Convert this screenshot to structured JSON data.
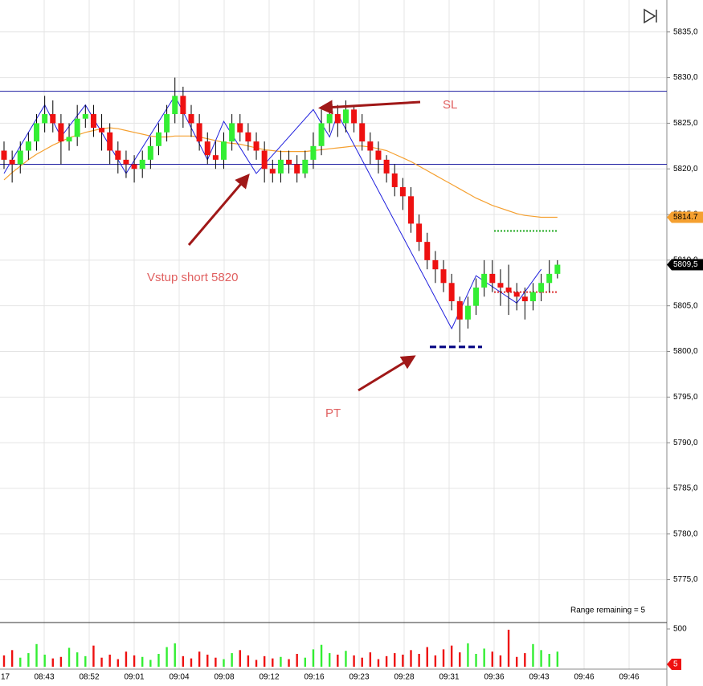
{
  "chart_data": {
    "type": "candlestick",
    "open": [
      5822,
      5821,
      5820.5,
      5822,
      5823,
      5825,
      5826,
      5825,
      5823,
      5823.5,
      5825.5,
      5826,
      5824.5,
      5824,
      5822,
      5821,
      5820.5,
      5820,
      5821,
      5822.5,
      5824,
      5826,
      5828,
      5826,
      5825,
      5823,
      5821.5,
      5821,
      5823,
      5825,
      5824,
      5823,
      5822,
      5820,
      5819.5,
      5821,
      5820.5,
      5819.5,
      5821,
      5822.5,
      5825,
      5826,
      5825,
      5826.5,
      5825,
      5823,
      5822,
      5821,
      5819.5,
      5818,
      5817,
      5814,
      5812,
      5810,
      5809,
      5807.5,
      5805.5,
      5803.5,
      5805,
      5807,
      5808.5,
      5807.5,
      5807,
      5806.5,
      5806,
      5805.5,
      5806.5,
      5807.5,
      5808.5
    ],
    "high": [
      5823,
      5822,
      5823,
      5824,
      5826,
      5828,
      5827.5,
      5826,
      5825,
      5827,
      5827,
      5827,
      5826,
      5825,
      5823,
      5822,
      5821.5,
      5822,
      5823.5,
      5825,
      5827,
      5830,
      5829,
      5827,
      5826,
      5824,
      5823,
      5824,
      5826,
      5826,
      5825,
      5824,
      5823,
      5821,
      5822,
      5822,
      5821.5,
      5822,
      5824,
      5826.5,
      5827,
      5827,
      5827.5,
      5827,
      5826,
      5824,
      5823,
      5821.5,
      5820.5,
      5819,
      5818,
      5815,
      5813,
      5811,
      5810,
      5808.5,
      5806,
      5806,
      5808,
      5810,
      5810,
      5809,
      5809.5,
      5807.5,
      5807,
      5807.5,
      5808.5,
      5810,
      5810
    ],
    "low": [
      5820,
      5818.5,
      5819.5,
      5821,
      5822,
      5824,
      5824,
      5820.5,
      5822,
      5822.5,
      5824.5,
      5823.5,
      5822,
      5820.5,
      5819.5,
      5819,
      5818.5,
      5819,
      5820,
      5821.5,
      5823,
      5825,
      5824.5,
      5823.5,
      5822,
      5820.5,
      5820,
      5820,
      5822,
      5823,
      5822,
      5821,
      5818.5,
      5818.5,
      5818.5,
      5819.5,
      5818.5,
      5819,
      5820,
      5821.5,
      5824,
      5823.5,
      5824,
      5824,
      5822,
      5820.5,
      5819.5,
      5818.5,
      5817,
      5815.5,
      5813,
      5811,
      5809,
      5807.5,
      5806.5,
      5804.5,
      5801,
      5802.5,
      5804,
      5806,
      5806.5,
      5805,
      5804,
      5804.5,
      5803.5,
      5804.5,
      5805.5,
      5806.5,
      5808
    ],
    "close": [
      5821,
      5820.5,
      5822,
      5823,
      5825,
      5826,
      5825,
      5823,
      5823.5,
      5825.5,
      5826,
      5824.5,
      5824,
      5822,
      5821,
      5820.5,
      5820,
      5821,
      5822.5,
      5824,
      5826,
      5828,
      5826,
      5825,
      5823,
      5821.5,
      5821,
      5823,
      5825,
      5824,
      5823,
      5822,
      5820,
      5819.5,
      5821,
      5820.5,
      5819.5,
      5821,
      5822.5,
      5825,
      5826,
      5825,
      5826.5,
      5825,
      5823,
      5822,
      5821,
      5819.5,
      5818,
      5817,
      5814,
      5812,
      5810,
      5809,
      5807.5,
      5805.5,
      5803.5,
      5805,
      5807,
      5808.5,
      5807.5,
      5807,
      5806.5,
      5806,
      5805.5,
      5806.5,
      5807.5,
      5808.5,
      5809.5
    ],
    "volume": [
      150,
      220,
      120,
      180,
      300,
      160,
      110,
      130,
      250,
      190,
      140,
      280,
      120,
      160,
      100,
      200,
      150,
      130,
      90,
      170,
      260,
      310,
      140,
      110,
      200,
      160,
      120,
      100,
      180,
      220,
      150,
      90,
      140,
      110,
      130,
      100,
      170,
      120,
      230,
      290,
      180,
      160,
      210,
      150,
      120,
      190,
      100,
      140,
      180,
      160,
      220,
      170,
      260,
      150,
      230,
      280,
      190,
      310,
      170,
      240,
      200,
      150,
      490,
      130,
      180,
      300,
      220,
      170,
      200
    ],
    "moving_average": [
      5818.8,
      5819.6,
      5820.3,
      5821,
      5821.6,
      5822.1,
      5822.6,
      5823,
      5823.4,
      5823.7,
      5824,
      5824.2,
      5824.4,
      5824.5,
      5824.4,
      5824.2,
      5824,
      5823.8,
      5823.6,
      5823.5,
      5823.5,
      5823.6,
      5823.6,
      5823.6,
      5823.5,
      5823.3,
      5823.1,
      5822.9,
      5822.8,
      5822.7,
      5822.5,
      5822.3,
      5822.1,
      5822,
      5821.9,
      5821.9,
      5821.9,
      5821.9,
      5822,
      5822.1,
      5822.2,
      5822.3,
      5822.4,
      5822.5,
      5822.5,
      5822.4,
      5822.2,
      5822,
      5821.6,
      5821.2,
      5820.8,
      5820.3,
      5819.8,
      5819.3,
      5818.8,
      5818.3,
      5817.8,
      5817.3,
      5816.8,
      5816.4,
      5816,
      5815.7,
      5815.4,
      5815.1,
      5814.9,
      5814.8,
      5814.7,
      5814.7,
      5814.7
    ],
    "zigzag": {
      "index": [
        0,
        5,
        7,
        10,
        15,
        21,
        25,
        27,
        31,
        38,
        40,
        41,
        55,
        58,
        63,
        66
      ],
      "price": [
        5819.5,
        5827,
        5823.5,
        5827,
        5819.5,
        5828,
        5821,
        5825.2,
        5819.5,
        5826.5,
        5823.5,
        5826,
        5802.5,
        5808.3,
        5805.3,
        5809
      ]
    },
    "levels": [
      5828.5,
      5820.5
    ],
    "target_lines": [
      {
        "value": 5813.2,
        "color": "#22aa22"
      },
      {
        "value": 5806.5,
        "color": "#dd3333"
      },
      {
        "value": 5800.5,
        "color": "#000080"
      }
    ],
    "up_color": "#33ee33",
    "down_color": "#ee1111",
    "ma_color": "#f5a030",
    "zigzag_color": "#2020dd",
    "level_color": "#1a1aa0",
    "ylim": [
      5770.3,
      5838.5
    ],
    "yticks": [
      {
        "value": 5835,
        "label": "5835,0"
      },
      {
        "value": 5830,
        "label": "5830,0"
      },
      {
        "value": 5825,
        "label": "5825,0"
      },
      {
        "value": 5820,
        "label": "5820,0"
      },
      {
        "value": 5815,
        "label": "5815,0"
      },
      {
        "value": 5810,
        "label": "5810,0"
      },
      {
        "value": 5805,
        "label": "5805,0"
      },
      {
        "value": 5800,
        "label": "5800,0"
      },
      {
        "value": 5795,
        "label": "5795,0"
      },
      {
        "value": 5790,
        "label": "5790,0"
      },
      {
        "value": 5785,
        "label": "5785,0"
      },
      {
        "value": 5780,
        "label": "5780,0"
      },
      {
        "value": 5775,
        "label": "5775,0"
      }
    ],
    "volume_ylim": [
      0,
      585
    ],
    "volume_yticks": [
      500
    ],
    "time_labels": [
      "17",
      "08:43",
      "08:52",
      "09:01",
      "09:04",
      "09:08",
      "09:12",
      "09:16",
      "09:23",
      "09:28",
      "09:31",
      "09:36",
      "09:43",
      "09:46",
      "09:46"
    ],
    "price_markers": [
      {
        "value": 5814.7,
        "label": "5814.7",
        "color": "#f5a030"
      },
      {
        "value": 5809.5,
        "label": "5809,5",
        "color": "#000000"
      }
    ],
    "volume_marker": "5",
    "annotations": [
      "SL",
      "Vstup short 5820",
      "PT"
    ],
    "status": "Range remaining = 5"
  }
}
